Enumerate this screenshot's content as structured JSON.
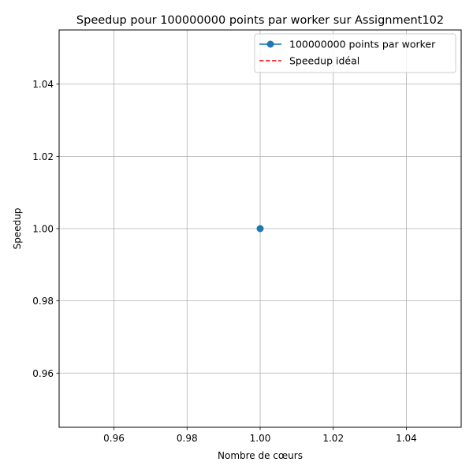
{
  "chart_data": {
    "type": "line",
    "title": "Speedup pour 100000000 points par worker sur Assignment102",
    "xlabel": "Nombre de cœurs",
    "ylabel": "Speedup",
    "xlim": [
      0.945,
      1.055
    ],
    "ylim": [
      0.945,
      1.055
    ],
    "x_ticks": [
      "0.96",
      "0.98",
      "1.00",
      "1.02",
      "1.04"
    ],
    "y_ticks": [
      "0.96",
      "0.98",
      "1.00",
      "1.02",
      "1.04"
    ],
    "grid": true,
    "legend_position": "top-right",
    "series": [
      {
        "name": "100000000 points par worker",
        "color": "#1f77b4",
        "style": "solid",
        "marker": "circle",
        "x": [
          1
        ],
        "y": [
          1.0
        ]
      },
      {
        "name": "Speedup idéal",
        "color": "#ff0000",
        "style": "dashed",
        "marker": "none",
        "x": [
          1
        ],
        "y": [
          1
        ]
      }
    ]
  }
}
